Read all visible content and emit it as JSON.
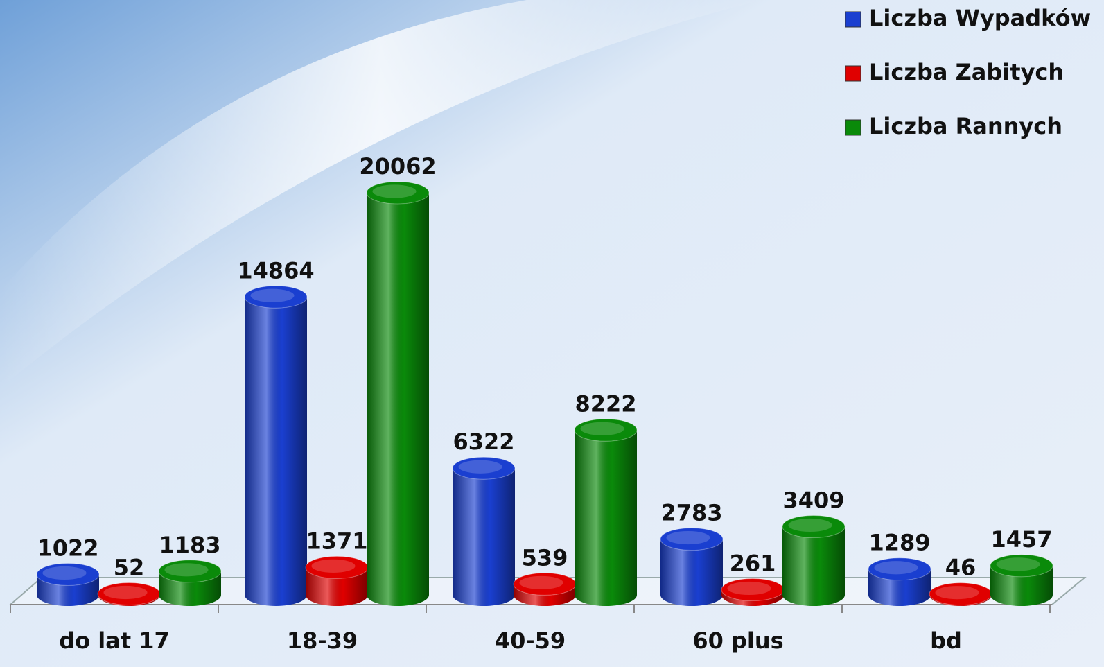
{
  "chart_data": {
    "type": "bar",
    "categories": [
      "do lat 17",
      "18-39",
      "40-59",
      "60 plus",
      "bd"
    ],
    "series": [
      {
        "name": "Liczba Wypadków",
        "color": "#1a3fd0",
        "values": [
          1022,
          14864,
          6322,
          2783,
          1289
        ]
      },
      {
        "name": "Liczba Zabitych",
        "color": "#e00000",
        "values": [
          52,
          1371,
          539,
          261,
          46
        ]
      },
      {
        "name": "Liczba Rannych",
        "color": "#0a8a0a",
        "values": [
          1183,
          20062,
          8222,
          3409,
          1457
        ]
      }
    ],
    "legend": "top-right"
  }
}
